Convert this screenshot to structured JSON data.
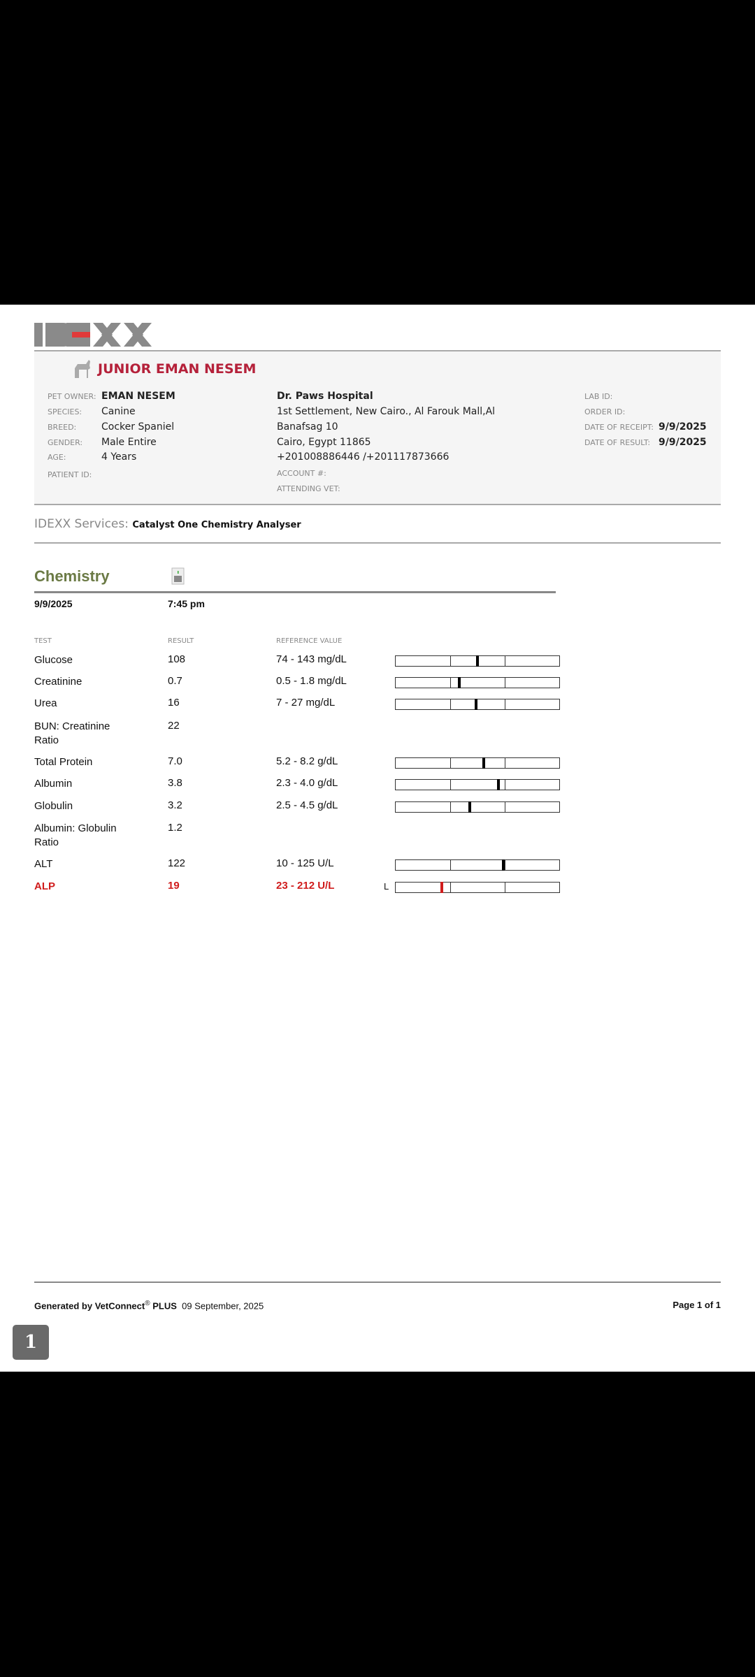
{
  "logo_text": "IDEXX",
  "patient": {
    "name": "JUNIOR EMAN NESEM",
    "species_icon": "dog-icon",
    "fields": [
      {
        "label": "PET OWNER:",
        "value": "EMAN NESEM"
      },
      {
        "label": "SPECIES:",
        "value": "Canine"
      },
      {
        "label": "BREED:",
        "value": "Cocker Spaniel"
      },
      {
        "label": "GENDER:",
        "value": "Male Entire"
      },
      {
        "label": "AGE:",
        "value": "4 Years"
      },
      {
        "label": "PATIENT ID:",
        "value": ""
      }
    ]
  },
  "clinic": {
    "name": "Dr. Paws Hospital",
    "address": [
      "1st Settlement, New Cairo., Al Farouk Mall,Al",
      "Banafsag 10",
      "Cairo, Egypt 11865",
      "+201008886446 /+201117873666"
    ],
    "account_label": "ACCOUNT #:",
    "vet_label": "ATTENDING VET:"
  },
  "ids": [
    {
      "label": "LAB ID:",
      "value": ""
    },
    {
      "label": "ORDER ID:",
      "value": ""
    },
    {
      "label": "DATE OF RECEIPT:",
      "value": "9/9/2025"
    },
    {
      "label": "DATE OF RESULT:",
      "value": "9/9/2025"
    }
  ],
  "services": {
    "label": "IDEXX Services:",
    "value": "Catalyst One Chemistry Analyser"
  },
  "section": {
    "title": "Chemistry",
    "date": "9/9/2025",
    "time": "7:45 pm"
  },
  "columns": {
    "test": "TEST",
    "result": "RESULT",
    "reference": "REFERENCE VALUE"
  },
  "results": [
    {
      "test": "Glucose",
      "result": "108",
      "reference": "74 - 143 mg/dL",
      "marker": 0.5,
      "flag": ""
    },
    {
      "test": "Creatinine",
      "result": "0.7",
      "reference": "0.5 - 1.8 mg/dL",
      "marker": 0.39,
      "flag": ""
    },
    {
      "test": "Urea",
      "result": "16",
      "reference": "7 - 27 mg/dL",
      "marker": 0.49,
      "flag": ""
    },
    {
      "test": "BUN: Creatinine Ratio",
      "result": "22",
      "reference": "",
      "marker": null,
      "flag": ""
    },
    {
      "test": "Total Protein",
      "result": "7.0",
      "reference": "5.2 - 8.2 g/dL",
      "marker": 0.54,
      "flag": ""
    },
    {
      "test": "Albumin",
      "result": "3.8",
      "reference": "2.3 - 4.0 g/dL",
      "marker": 0.63,
      "flag": ""
    },
    {
      "test": "Globulin",
      "result": "3.2",
      "reference": "2.5 - 4.5 g/dL",
      "marker": 0.455,
      "flag": ""
    },
    {
      "test": "Albumin: Globulin Ratio",
      "result": "1.2",
      "reference": "",
      "marker": null,
      "flag": ""
    },
    {
      "test": "ALT",
      "result": "122",
      "reference": "10 - 125 U/L",
      "marker": 0.66,
      "flag": ""
    },
    {
      "test": "ALP",
      "result": "19",
      "reference": "23 - 212 U/L",
      "marker": 0.28,
      "flag": "L"
    }
  ],
  "colors": {
    "abnormal": "#d01c1c",
    "patient_name": "#b5213a",
    "section_title": "#6b7a45"
  },
  "footer": {
    "generated": "Generated by VetConnect",
    "reg": "®",
    "plus": "PLUS",
    "date": "09 September, 2025",
    "page": "Page 1 of 1"
  },
  "page_badge": "1"
}
